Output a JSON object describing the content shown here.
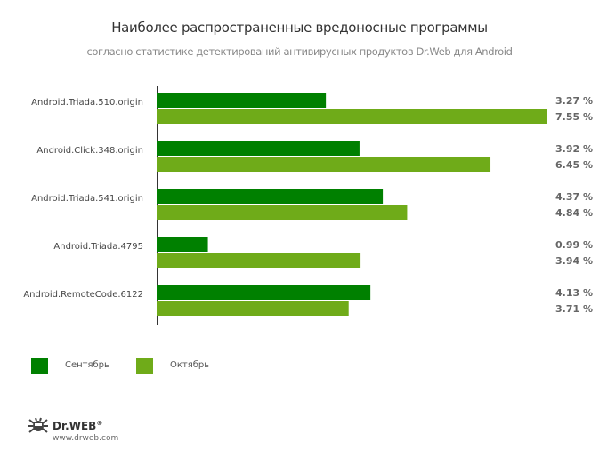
{
  "chart_data": {
    "type": "bar",
    "orientation": "horizontal",
    "title": "Наиболее распространенные вредоносные программы",
    "subtitle": "согласно статистике детектирований антивирусных продуктов Dr.Web для Android",
    "categories": [
      "Android.Triada.510.origin",
      "Android.Click.348.origin",
      "Android.Triada.541.origin",
      "Android.Triada.4795",
      "Android.RemoteCode.6122"
    ],
    "series": [
      {
        "name": "Сентябрь",
        "color": "#008000",
        "values": [
          3.27,
          3.92,
          4.37,
          0.99,
          4.13
        ],
        "labels": [
          "3.27 %",
          "3.92 %",
          "4.37 %",
          "0.99 %",
          "4.13 %"
        ]
      },
      {
        "name": "Октябрь",
        "color": "#6fab19",
        "values": [
          7.55,
          6.45,
          4.84,
          3.94,
          3.71
        ],
        "labels": [
          "7.55 %",
          "6.45 %",
          "4.84 %",
          "3.94 %",
          "3.71 %"
        ]
      }
    ],
    "xlim": [
      0,
      7.55
    ],
    "legend": "bottom-left"
  },
  "brand": {
    "name": "Dr.WEB",
    "registered": "®",
    "url": "www.drweb.com"
  }
}
